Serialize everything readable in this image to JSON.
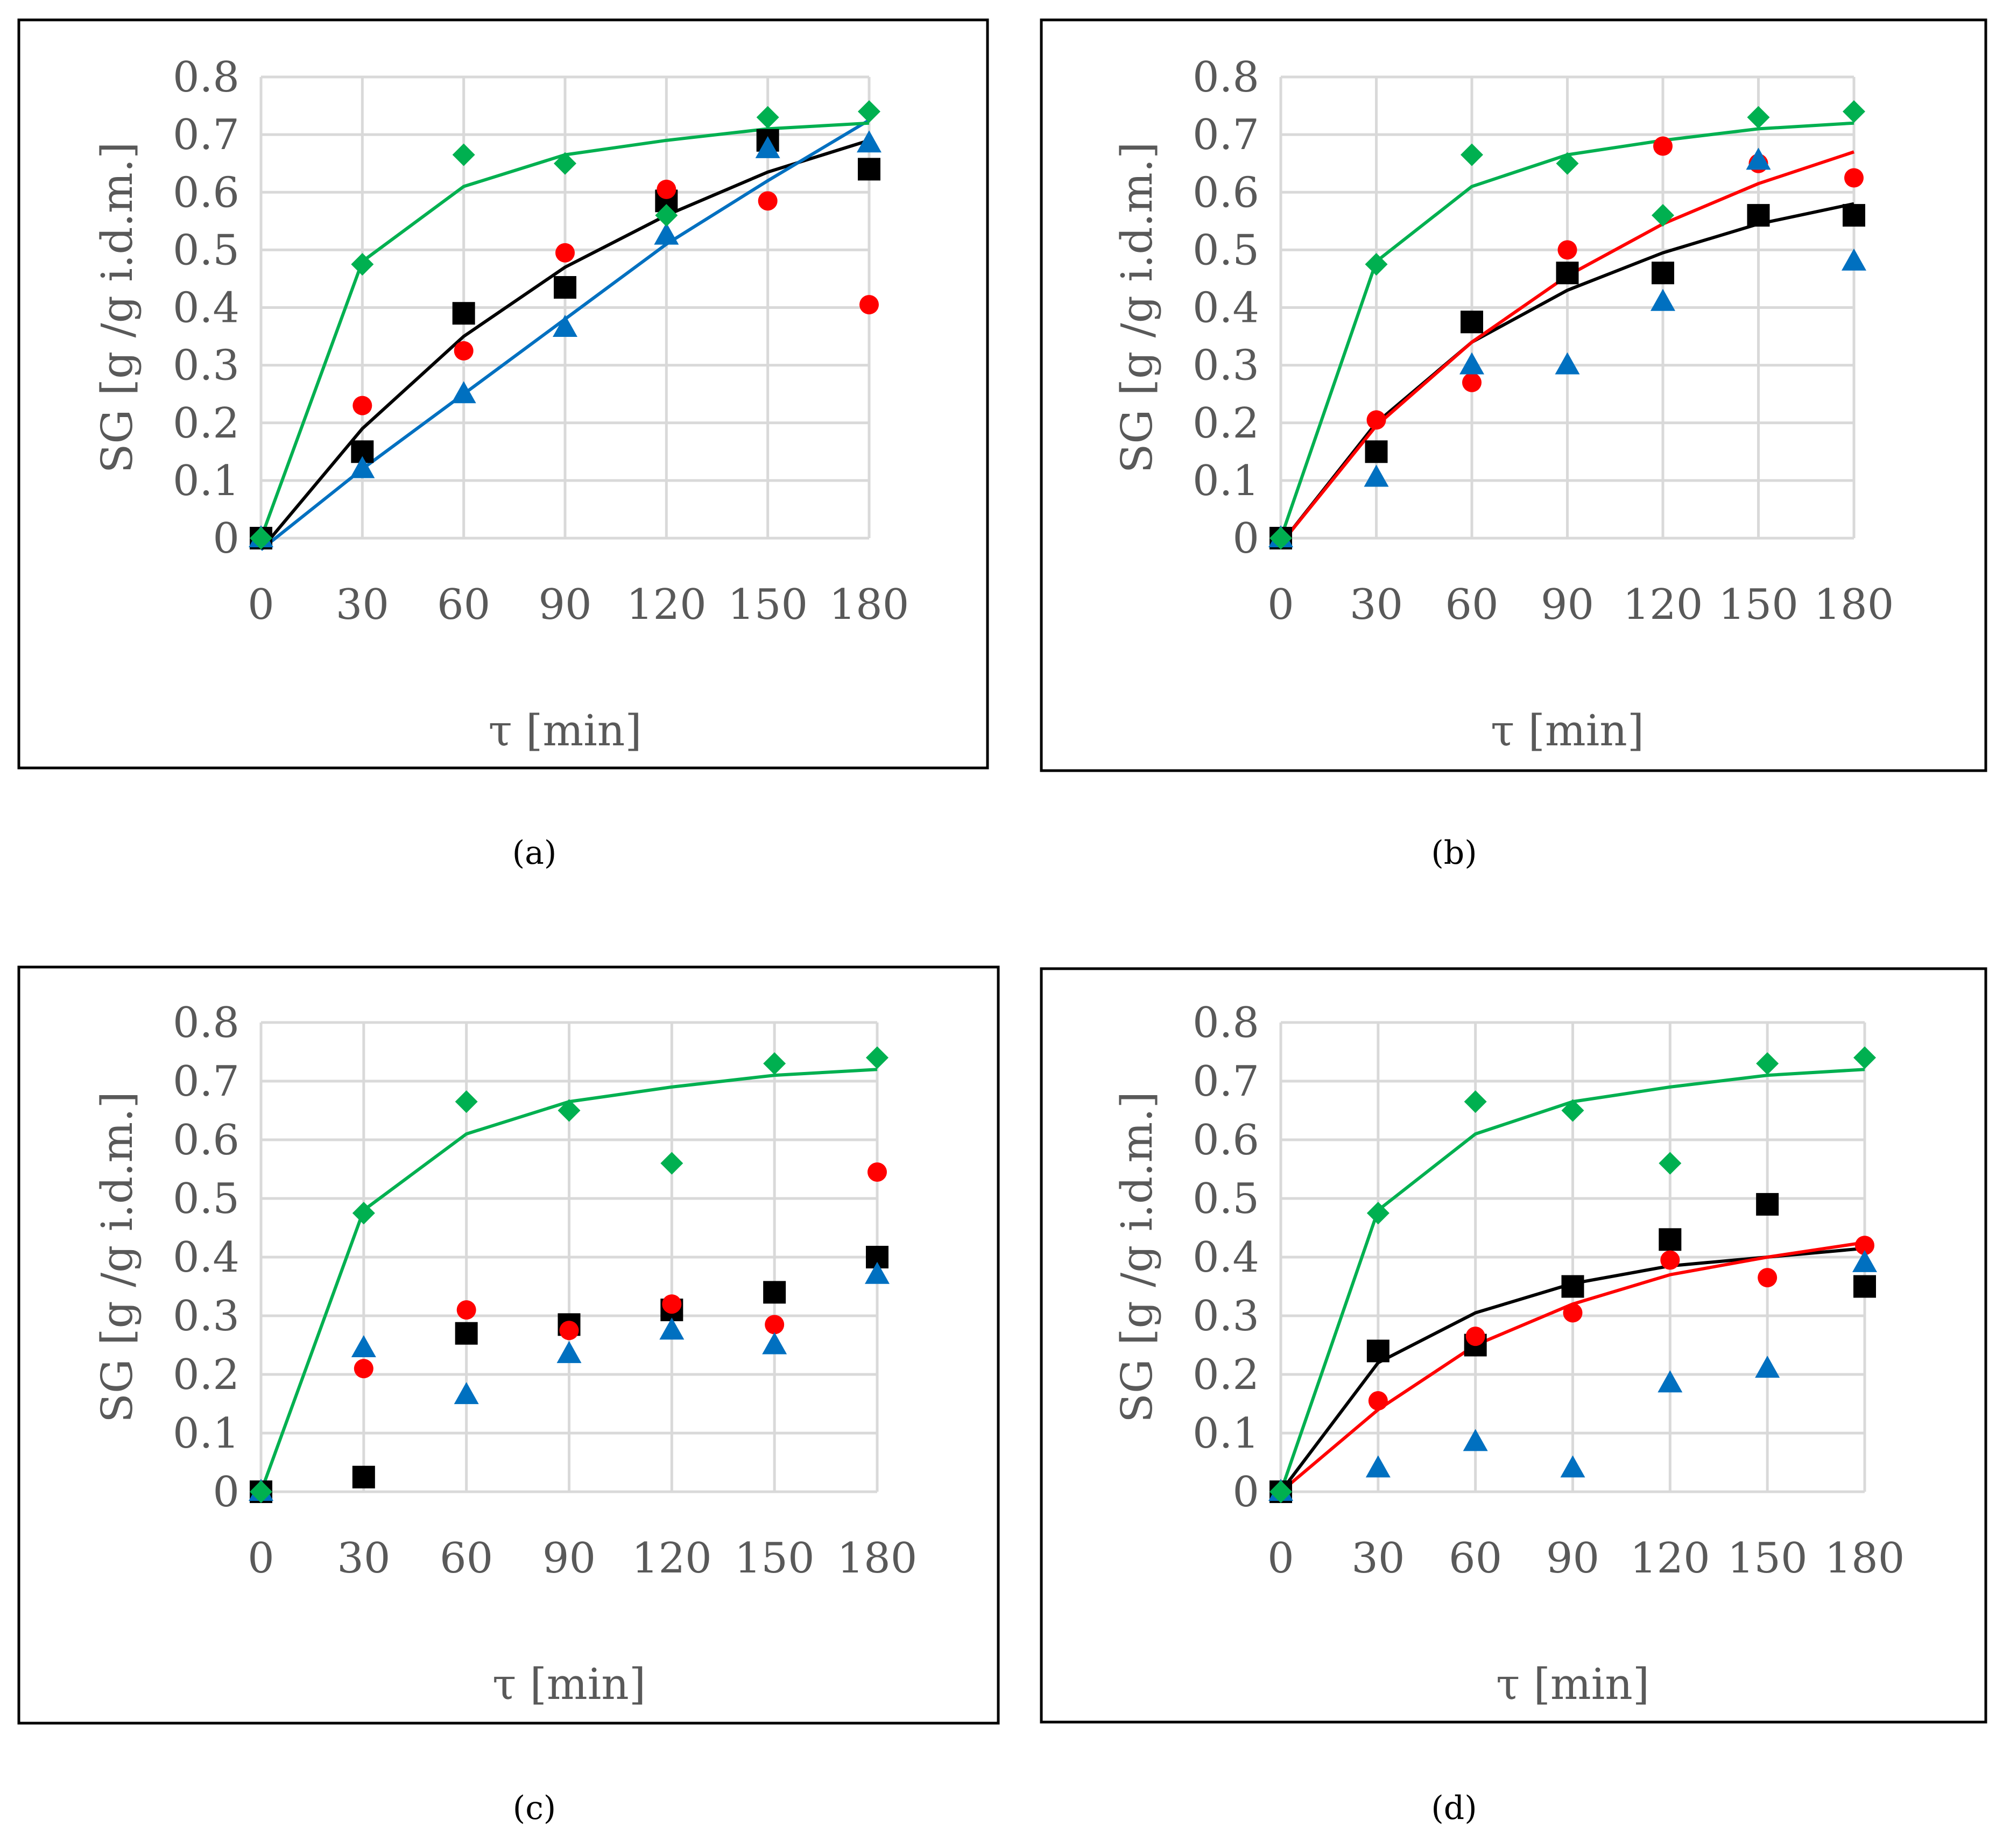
{
  "chart_data": [
    {
      "type": "scatter",
      "caption": "(a)",
      "xlabel": "τ [min]",
      "ylabel": "SG [g /g i.d.m.]",
      "x_ticks": [
        "0",
        "30",
        "60",
        "90",
        "120",
        "150",
        "180"
      ],
      "y_ticks": [
        "0",
        "0.1",
        "0.2",
        "0.3",
        "0.4",
        "0.5",
        "0.6",
        "0.7",
        "0.8"
      ],
      "xlim": [
        0,
        180
      ],
      "ylim": [
        0,
        0.8
      ],
      "grid": true,
      "series": [
        {
          "name": "black-squares",
          "marker": "square",
          "color": "#000000",
          "x": [
            0,
            30,
            60,
            90,
            120,
            150,
            180
          ],
          "y": [
            0,
            0.15,
            0.39,
            0.435,
            0.585,
            0.69,
            0.64
          ]
        },
        {
          "name": "red-circles",
          "marker": "circle",
          "color": "#ff0000",
          "x": [
            30,
            60,
            90,
            120,
            150,
            180
          ],
          "y": [
            0.23,
            0.325,
            0.495,
            0.605,
            0.585,
            0.405
          ]
        },
        {
          "name": "blue-triangles",
          "marker": "triangle",
          "color": "#0070c0",
          "x": [
            0,
            30,
            60,
            90,
            120,
            150,
            180
          ],
          "y": [
            0,
            0.12,
            0.25,
            0.365,
            0.525,
            0.675,
            0.685
          ]
        },
        {
          "name": "green-diamonds",
          "marker": "diamond",
          "color": "#00b050",
          "x": [
            0,
            30,
            60,
            90,
            120,
            150,
            180
          ],
          "y": [
            0,
            0.475,
            0.665,
            0.65,
            0.56,
            0.73,
            0.74
          ]
        }
      ],
      "fit_lines": [
        {
          "name": "black-fit",
          "color": "#000000",
          "x": [
            0,
            30,
            60,
            90,
            120,
            150,
            180
          ],
          "y": [
            -0.02,
            0.19,
            0.35,
            0.47,
            0.56,
            0.635,
            0.69
          ]
        },
        {
          "name": "blue-fit",
          "color": "#0070c0",
          "x": [
            0,
            30,
            60,
            90,
            120,
            150,
            180
          ],
          "y": [
            -0.02,
            0.12,
            0.25,
            0.38,
            0.51,
            0.62,
            0.725
          ]
        },
        {
          "name": "green-fit",
          "color": "#00b050",
          "x": [
            0,
            30,
            60,
            90,
            120,
            150,
            180
          ],
          "y": [
            0,
            0.48,
            0.61,
            0.665,
            0.69,
            0.71,
            0.72
          ]
        }
      ]
    },
    {
      "type": "scatter",
      "caption": "(b)",
      "xlabel": "τ [min]",
      "ylabel": "SG [g /g i.d.m.]",
      "x_ticks": [
        "0",
        "30",
        "60",
        "90",
        "120",
        "150",
        "180"
      ],
      "y_ticks": [
        "0",
        "0.1",
        "0.2",
        "0.3",
        "0.4",
        "0.5",
        "0.6",
        "0.7",
        "0.8"
      ],
      "xlim": [
        0,
        180
      ],
      "ylim": [
        0,
        0.8
      ],
      "grid": true,
      "series": [
        {
          "name": "black-squares",
          "marker": "square",
          "color": "#000000",
          "x": [
            0,
            30,
            60,
            90,
            120,
            150,
            180
          ],
          "y": [
            0,
            0.15,
            0.375,
            0.46,
            0.46,
            0.56,
            0.56
          ]
        },
        {
          "name": "red-circles",
          "marker": "circle",
          "color": "#ff0000",
          "x": [
            30,
            60,
            90,
            120,
            150,
            180
          ],
          "y": [
            0.205,
            0.27,
            0.5,
            0.68,
            0.65,
            0.625
          ]
        },
        {
          "name": "blue-triangles",
          "marker": "triangle",
          "color": "#0070c0",
          "x": [
            0,
            30,
            60,
            90,
            120,
            150,
            180
          ],
          "y": [
            0,
            0.105,
            0.3,
            0.3,
            0.41,
            0.655,
            0.48
          ]
        },
        {
          "name": "green-diamonds",
          "marker": "diamond",
          "color": "#00b050",
          "x": [
            0,
            30,
            60,
            90,
            120,
            150,
            180
          ],
          "y": [
            0,
            0.475,
            0.665,
            0.65,
            0.56,
            0.73,
            0.74
          ]
        }
      ],
      "fit_lines": [
        {
          "name": "black-fit",
          "color": "#000000",
          "x": [
            0,
            30,
            60,
            90,
            120,
            150,
            180
          ],
          "y": [
            -0.01,
            0.2,
            0.34,
            0.43,
            0.495,
            0.545,
            0.58
          ]
        },
        {
          "name": "red-fit",
          "color": "#ff0000",
          "x": [
            0,
            30,
            60,
            90,
            120,
            150,
            180
          ],
          "y": [
            -0.01,
            0.195,
            0.34,
            0.455,
            0.545,
            0.615,
            0.67
          ]
        },
        {
          "name": "green-fit",
          "color": "#00b050",
          "x": [
            0,
            30,
            60,
            90,
            120,
            150,
            180
          ],
          "y": [
            0,
            0.48,
            0.61,
            0.665,
            0.69,
            0.71,
            0.72
          ]
        }
      ]
    },
    {
      "type": "scatter",
      "caption": "(c)",
      "xlabel": "τ [min]",
      "ylabel": "SG [g /g i.d.m.]",
      "x_ticks": [
        "0",
        "30",
        "60",
        "90",
        "120",
        "150",
        "180"
      ],
      "y_ticks": [
        "0",
        "0.1",
        "0.2",
        "0.3",
        "0.4",
        "0.5",
        "0.6",
        "0.7",
        "0.8"
      ],
      "xlim": [
        0,
        180
      ],
      "ylim": [
        0,
        0.8
      ],
      "grid": true,
      "series": [
        {
          "name": "black-squares",
          "marker": "square",
          "color": "#000000",
          "x": [
            0,
            30,
            60,
            90,
            120,
            150,
            180
          ],
          "y": [
            0,
            0.025,
            0.27,
            0.285,
            0.31,
            0.34,
            0.4
          ]
        },
        {
          "name": "red-circles",
          "marker": "circle",
          "color": "#ff0000",
          "x": [
            30,
            60,
            90,
            120,
            150,
            180
          ],
          "y": [
            0.21,
            0.31,
            0.275,
            0.32,
            0.285,
            0.545
          ]
        },
        {
          "name": "blue-triangles",
          "marker": "triangle",
          "color": "#0070c0",
          "x": [
            0,
            30,
            60,
            90,
            120,
            150,
            180
          ],
          "y": [
            0,
            0.245,
            0.165,
            0.235,
            0.275,
            0.25,
            0.37
          ]
        },
        {
          "name": "green-diamonds",
          "marker": "diamond",
          "color": "#00b050",
          "x": [
            0,
            30,
            60,
            90,
            120,
            150,
            180
          ],
          "y": [
            0,
            0.475,
            0.665,
            0.65,
            0.56,
            0.73,
            0.74
          ]
        }
      ],
      "fit_lines": [
        {
          "name": "green-fit",
          "color": "#00b050",
          "x": [
            0,
            30,
            60,
            90,
            120,
            150,
            180
          ],
          "y": [
            0,
            0.48,
            0.61,
            0.665,
            0.69,
            0.71,
            0.72
          ]
        }
      ]
    },
    {
      "type": "scatter",
      "caption": "(d)",
      "xlabel": "τ [min]",
      "ylabel": "SG [g /g i.d.m.]",
      "x_ticks": [
        "0",
        "30",
        "60",
        "90",
        "120",
        "150",
        "180"
      ],
      "y_ticks": [
        "0",
        "0.1",
        "0.2",
        "0.3",
        "0.4",
        "0.5",
        "0.6",
        "0.7",
        "0.8"
      ],
      "xlim": [
        0,
        180
      ],
      "ylim": [
        0,
        0.8
      ],
      "grid": true,
      "series": [
        {
          "name": "black-squares",
          "marker": "square",
          "color": "#000000",
          "x": [
            0,
            30,
            60,
            90,
            120,
            150,
            180
          ],
          "y": [
            0,
            0.24,
            0.25,
            0.35,
            0.43,
            0.49,
            0.35
          ]
        },
        {
          "name": "red-circles",
          "marker": "circle",
          "color": "#ff0000",
          "x": [
            30,
            60,
            90,
            120,
            150,
            180
          ],
          "y": [
            0.155,
            0.265,
            0.305,
            0.395,
            0.365,
            0.42
          ]
        },
        {
          "name": "blue-triangles",
          "marker": "triangle",
          "color": "#0070c0",
          "x": [
            0,
            30,
            60,
            90,
            120,
            150,
            180
          ],
          "y": [
            0,
            0.04,
            0.085,
            0.04,
            0.185,
            0.21,
            0.39
          ]
        },
        {
          "name": "green-diamonds",
          "marker": "diamond",
          "color": "#00b050",
          "x": [
            0,
            30,
            60,
            90,
            120,
            150,
            180
          ],
          "y": [
            0,
            0.475,
            0.665,
            0.65,
            0.56,
            0.73,
            0.74
          ]
        }
      ],
      "fit_lines": [
        {
          "name": "black-fit",
          "color": "#000000",
          "x": [
            0,
            30,
            60,
            90,
            120,
            150,
            180
          ],
          "y": [
            0,
            0.22,
            0.305,
            0.355,
            0.385,
            0.4,
            0.415
          ]
        },
        {
          "name": "red-fit",
          "color": "#ff0000",
          "x": [
            0,
            30,
            60,
            90,
            120,
            150,
            180
          ],
          "y": [
            0,
            0.14,
            0.25,
            0.32,
            0.37,
            0.4,
            0.425
          ]
        },
        {
          "name": "green-fit",
          "color": "#00b050",
          "x": [
            0,
            30,
            60,
            90,
            120,
            150,
            180
          ],
          "y": [
            0,
            0.48,
            0.61,
            0.665,
            0.69,
            0.71,
            0.72
          ]
        }
      ]
    }
  ],
  "colors": {
    "frame": "#000000",
    "grid": "#d9d9d9",
    "tick_text": "#595959"
  }
}
